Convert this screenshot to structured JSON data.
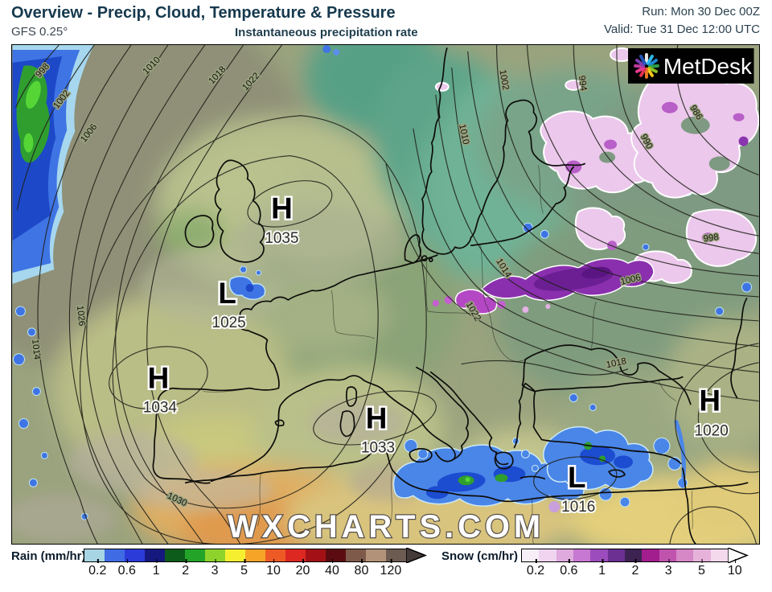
{
  "header": {
    "title": "Overview - Precip, Cloud, Temperature & Pressure",
    "model": "GFS 0.25°",
    "subtitle": "Instantaneous precipitation rate",
    "run": "Run: Mon 30 Dec 00Z",
    "valid": "Valid: Tue 31 Dec 12:00 UTC"
  },
  "logo": {
    "name": "MetDesk"
  },
  "watermark": "WXCHARTS.COM",
  "map": {
    "pressure_centers": [
      {
        "letter": "H",
        "value": "1035"
      },
      {
        "letter": "L",
        "value": "1025"
      },
      {
        "letter": "H",
        "value": "1034"
      },
      {
        "letter": "H",
        "value": "1033"
      },
      {
        "letter": "L",
        "value": "1016"
      },
      {
        "letter": "H",
        "value": "1020"
      }
    ],
    "isobar_labels": [
      {
        "value": "998"
      },
      {
        "value": "1002"
      },
      {
        "value": "1006"
      },
      {
        "value": "1010"
      },
      {
        "value": "1018"
      },
      {
        "value": "1022"
      },
      {
        "value": "1014"
      },
      {
        "value": "1026"
      },
      {
        "value": "1030"
      },
      {
        "value": "1010"
      },
      {
        "value": "1002"
      },
      {
        "value": "994"
      },
      {
        "value": "990"
      },
      {
        "value": "986"
      },
      {
        "value": "998"
      },
      {
        "value": "1006"
      },
      {
        "value": "1014"
      },
      {
        "value": "1022"
      },
      {
        "value": "1018"
      }
    ]
  },
  "palette": {
    "rain_light": "#a6d7ee",
    "rain": "#4a86e8",
    "rain_heavy": "#1c4cd0",
    "rain_extreme": "#2f9e2f",
    "snow_light": "#ecc8ec",
    "snow_medium": "#b85fc8",
    "snow_dark": "#6b1f92",
    "title_color": "#16394e"
  },
  "legend": {
    "rain": {
      "label": "Rain (mm/hr)",
      "ticks": [
        "0.2",
        "0.6",
        "1",
        "2",
        "3",
        "5",
        "10",
        "20",
        "40",
        "80",
        "120"
      ],
      "colors": [
        "#a7d5e3",
        "#3f6be4",
        "#2b3bd9",
        "#15197d",
        "#0e5c1c",
        "#23a428",
        "#8ed32b",
        "#f6ef2f",
        "#f6a428",
        "#ee5a25",
        "#dd2822",
        "#a31116",
        "#5c0c10",
        "#7e5a4b",
        "#b29379",
        "#6b5b51"
      ],
      "arrow_color": "#443a38"
    },
    "snow": {
      "label": "Snow (cm/hr)",
      "ticks": [
        "0.2",
        "0.6",
        "1",
        "2",
        "3",
        "5",
        "10"
      ],
      "colors": [
        "#f8eef8",
        "#f0d4f0",
        "#dfaade",
        "#c678d2",
        "#9c4cbc",
        "#6c2f92",
        "#3d2352",
        "#a21d8e",
        "#c053ae",
        "#d687c6",
        "#e6b2da",
        "#f4d9ec"
      ],
      "arrow_color": "#ffffff"
    }
  }
}
